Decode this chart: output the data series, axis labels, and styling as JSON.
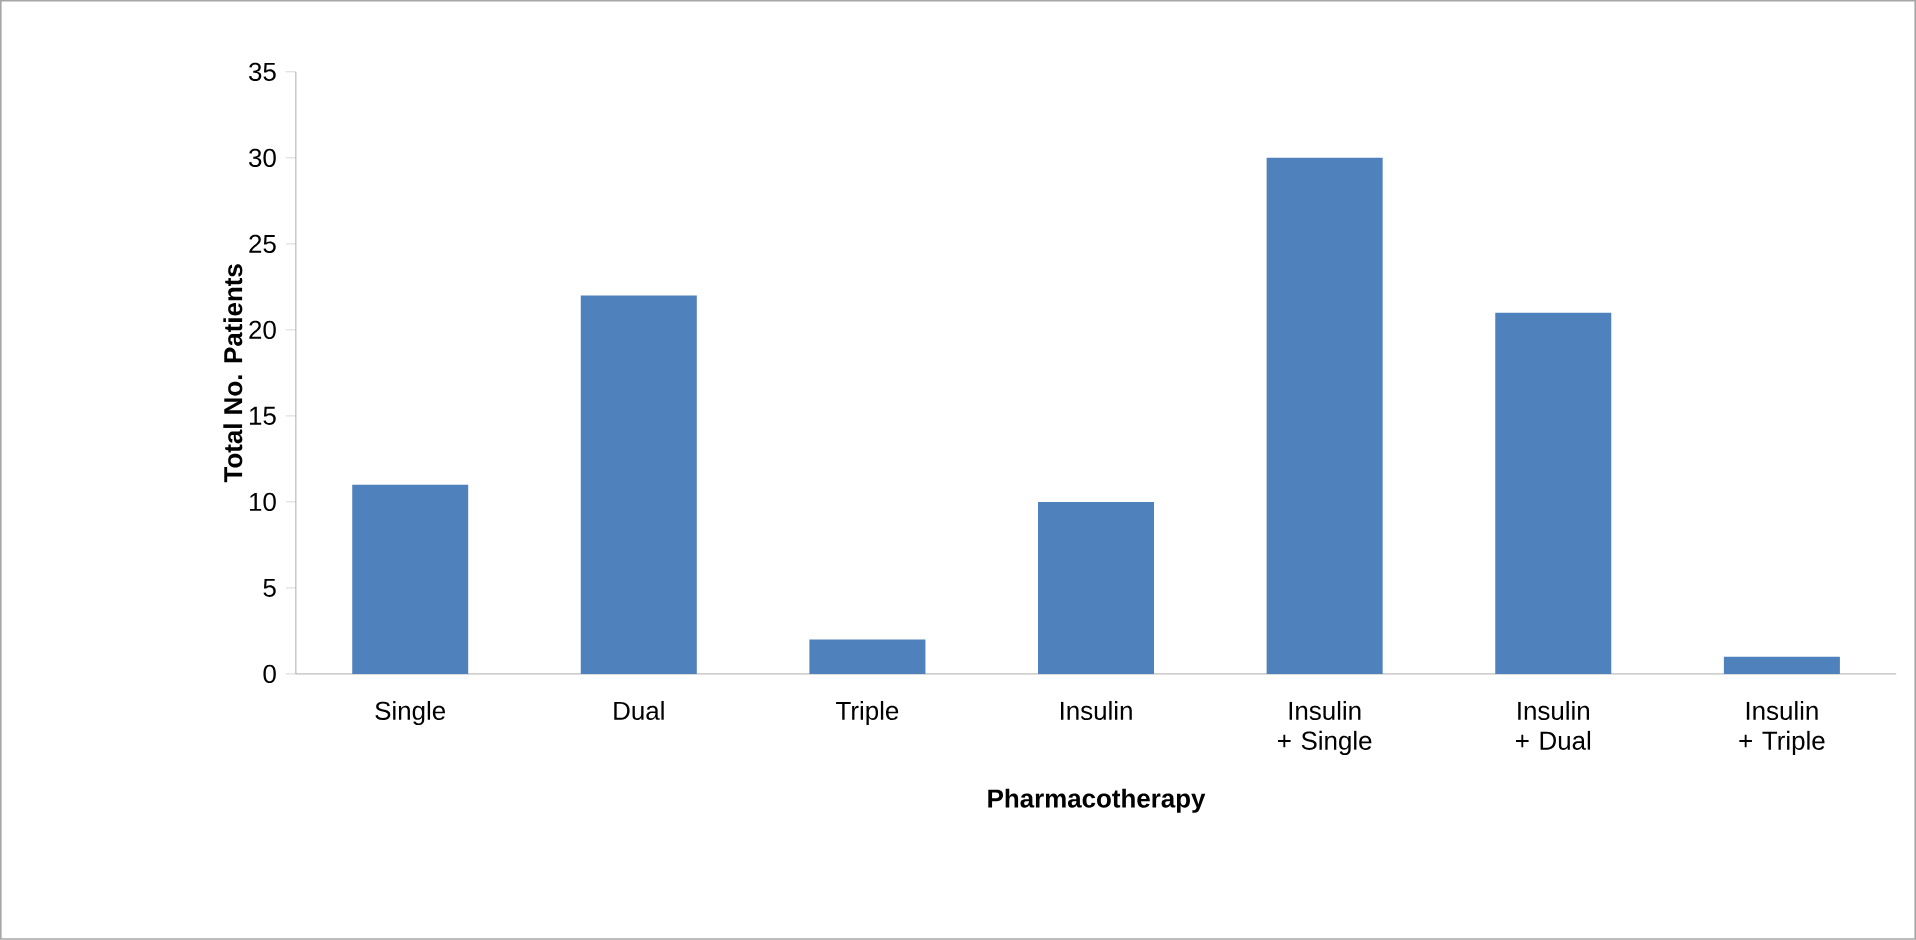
{
  "chart_data": {
    "type": "bar",
    "xlabel": "Pharmacotherapy",
    "ylabel": "Total No. Patients",
    "categories": [
      "Single",
      "Dual",
      "Triple",
      "Insulin",
      "Insulin + Single",
      "Insulin + Dual",
      "Insulin + Triple"
    ],
    "values": [
      11,
      22,
      2,
      10,
      30,
      21,
      1
    ],
    "color": "#4f81bd",
    "ylim": [
      0,
      35
    ],
    "yticks": [
      0,
      5,
      10,
      15,
      20,
      25,
      30,
      35
    ],
    "grid": false
  }
}
